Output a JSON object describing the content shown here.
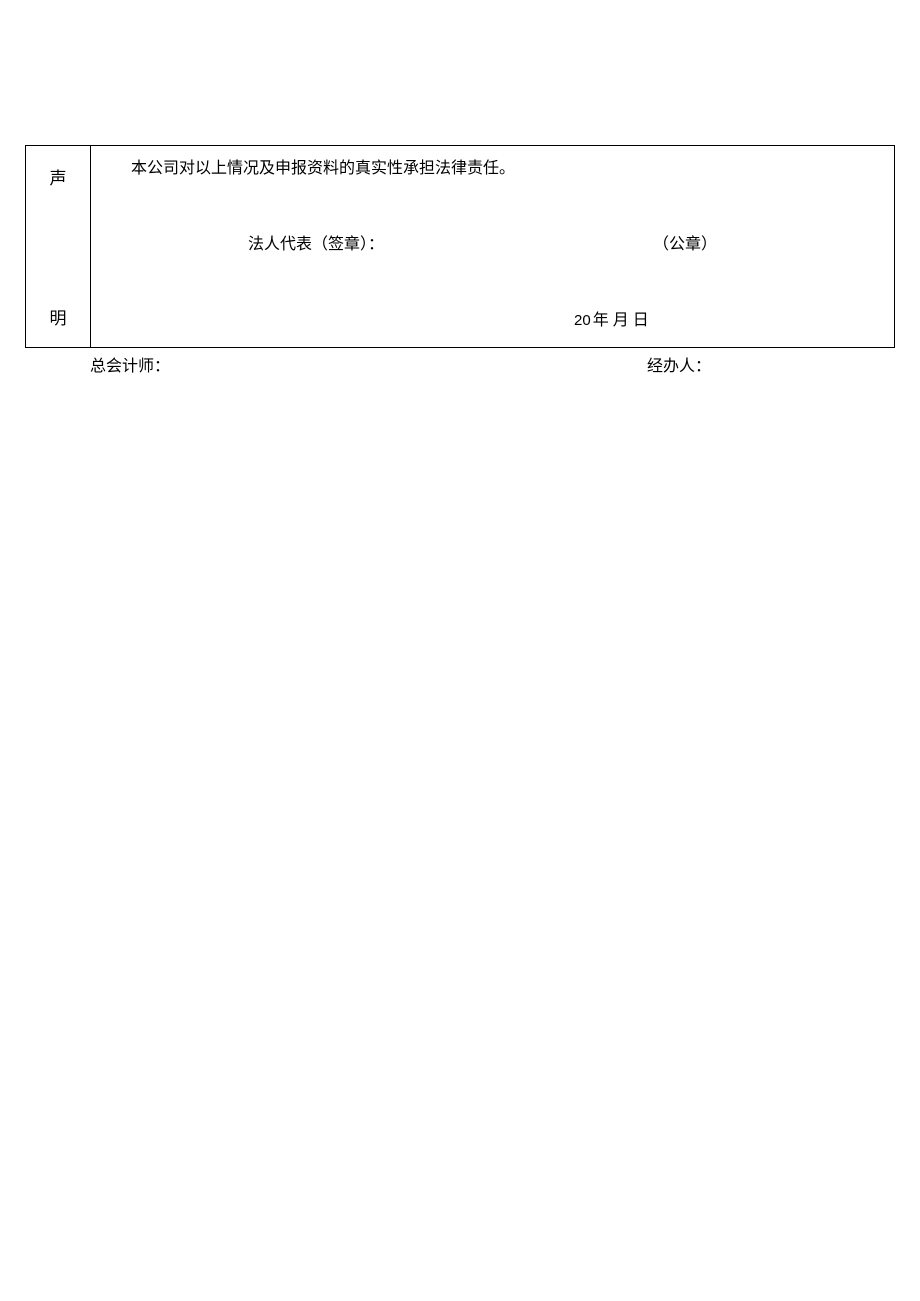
{
  "declaration": {
    "header_char_1": "声",
    "header_char_2": "明",
    "statement": "本公司对以上情况及申报资料的真实性承担法律责任。",
    "legal_rep_label": "法人代表（签章）：",
    "seal_label": "（公章）",
    "date_year_prefix": "20",
    "date_suffix": "年 月 日"
  },
  "footer": {
    "chief_accountant_label": "总会计师：",
    "handler_label": "经办人："
  },
  "style": {
    "background_color": "#ffffff",
    "border_color": "#000000",
    "text_color": "#000000",
    "font_size_body": 16,
    "font_size_header": 17,
    "font_family": "SimSun"
  }
}
